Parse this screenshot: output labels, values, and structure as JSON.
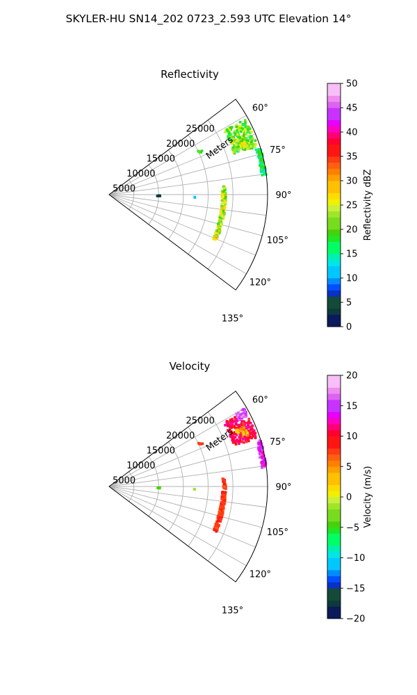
{
  "suptitle": "SKYLER-HU  SN14_202  0723_2.593 UTC Elevation 14°",
  "chart_data": [
    {
      "type": "polar-sector",
      "title": "Reflectivity",
      "range_label": "Meters",
      "range_max": 32000,
      "range_ticks": [
        {
          "value": 5000,
          "label": "5000"
        },
        {
          "value": 10000,
          "label": "10000"
        },
        {
          "value": 15000,
          "label": "15000"
        },
        {
          "value": 20000,
          "label": "20000"
        },
        {
          "value": 25000,
          "label": "25000"
        }
      ],
      "azimuth_range": [
        53,
        127
      ],
      "azimuth_gridlines": [
        60,
        67.5,
        75,
        82.5,
        90,
        97.5,
        105,
        112.5,
        120,
        127.5
      ],
      "azimuth_ticks": [
        {
          "value": 60,
          "label": "60°"
        },
        {
          "value": 75,
          "label": "75°"
        },
        {
          "value": 90,
          "label": "90°"
        },
        {
          "value": 105,
          "label": "105°"
        },
        {
          "value": 120,
          "label": "120°"
        },
        {
          "value": 135,
          "label": "135°"
        }
      ],
      "colorbar": {
        "label": "Reflectivity dBZ",
        "min": 0,
        "max": 50,
        "ticks": [
          0,
          5,
          10,
          15,
          20,
          25,
          30,
          35,
          40,
          45,
          50
        ]
      },
      "echoes": [
        {
          "az_range": [
            61,
            72
          ],
          "r_range": [
            26500,
            31500
          ],
          "value_range": [
            15,
            26
          ],
          "count": 220
        },
        {
          "az_range": [
            66,
            71
          ],
          "r_range": [
            27500,
            30000
          ],
          "value_range": [
            20,
            28
          ],
          "count": 40
        },
        {
          "az_range": [
            73,
            83
          ],
          "r_range": [
            31000,
            32000
          ],
          "value_range": [
            13,
            21
          ],
          "count": 80
        },
        {
          "az_range": [
            86,
            113
          ],
          "r_range": [
            22800,
            23600
          ],
          "value_range": [
            17,
            30
          ],
          "count": 150
        },
        {
          "az_range": [
            64,
            66
          ],
          "r_range": [
            20000,
            20800
          ],
          "value_range": [
            17,
            22
          ],
          "count": 6
        },
        {
          "az_range": [
            91,
            92
          ],
          "r_range": [
            9700,
            10300
          ],
          "value_range": [
            1,
            8
          ],
          "count": 6
        },
        {
          "az_range": [
            91,
            92
          ],
          "r_range": [
            17200,
            17600
          ],
          "value_range": [
            10,
            13
          ],
          "count": 2
        }
      ]
    },
    {
      "type": "polar-sector",
      "title": "Velocity",
      "range_label": "Meters",
      "range_max": 32000,
      "range_ticks": [
        {
          "value": 5000,
          "label": "5000"
        },
        {
          "value": 10000,
          "label": "10000"
        },
        {
          "value": 15000,
          "label": "15000"
        },
        {
          "value": 20000,
          "label": "20000"
        },
        {
          "value": 25000,
          "label": "25000"
        }
      ],
      "azimuth_range": [
        53,
        127
      ],
      "azimuth_gridlines": [
        60,
        67.5,
        75,
        82.5,
        90,
        97.5,
        105,
        112.5,
        120,
        127.5
      ],
      "azimuth_ticks": [
        {
          "value": 60,
          "label": "60°"
        },
        {
          "value": 75,
          "label": "75°"
        },
        {
          "value": 90,
          "label": "90°"
        },
        {
          "value": 105,
          "label": "105°"
        },
        {
          "value": 120,
          "label": "120°"
        },
        {
          "value": 135,
          "label": "135°"
        }
      ],
      "colorbar": {
        "label": "Velocity (m/s)",
        "min": -20,
        "max": 20,
        "ticks": [
          -20,
          -15,
          -10,
          -5,
          0,
          5,
          10,
          15,
          20
        ]
      },
      "echoes": [
        {
          "az_range": [
            61,
            72
          ],
          "r_range": [
            26500,
            31500
          ],
          "value_range": [
            8,
            13
          ],
          "count": 200
        },
        {
          "az_range": [
            66,
            70
          ],
          "r_range": [
            28000,
            30000
          ],
          "value_range": [
            1,
            6
          ],
          "count": 25
        },
        {
          "az_range": [
            60,
            63
          ],
          "r_range": [
            29500,
            31500
          ],
          "value_range": [
            14,
            17
          ],
          "count": 40
        },
        {
          "az_range": [
            73,
            83
          ],
          "r_range": [
            31000,
            32000
          ],
          "value_range": [
            12,
            17
          ],
          "count": 80
        },
        {
          "az_range": [
            86,
            113
          ],
          "r_range": [
            22800,
            23600
          ],
          "value_range": [
            7,
            9
          ],
          "count": 150
        },
        {
          "az_range": [
            64,
            66
          ],
          "r_range": [
            20000,
            20800
          ],
          "value_range": [
            7,
            9
          ],
          "count": 6
        },
        {
          "az_range": [
            91,
            92
          ],
          "r_range": [
            9700,
            10300
          ],
          "value_range": [
            -6,
            -4
          ],
          "count": 5
        },
        {
          "az_range": [
            91,
            92
          ],
          "r_range": [
            17200,
            17600
          ],
          "value_range": [
            -3,
            -1
          ],
          "count": 2
        }
      ]
    }
  ]
}
